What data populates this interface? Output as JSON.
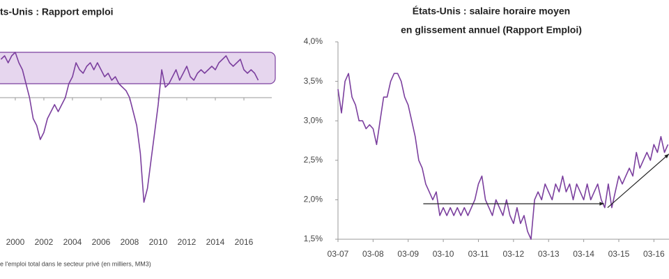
{
  "chart_data": [
    {
      "type": "line",
      "title": "ts-Unis : Rapport emploi",
      "note": "e l'emploi total dans le secteur privé (en milliers, MM3)",
      "color": "#7b3f9e",
      "band": [
        100,
        325
      ],
      "band_color": "#e6d6ee",
      "x": [
        1999,
        1999.25,
        1999.5,
        1999.75,
        2000,
        2000.25,
        2000.5,
        2000.75,
        2001,
        2001.25,
        2001.5,
        2001.75,
        2002,
        2002.25,
        2002.5,
        2002.75,
        2003,
        2003.25,
        2003.5,
        2003.75,
        2004,
        2004.25,
        2004.5,
        2004.75,
        2005,
        2005.25,
        2005.5,
        2005.75,
        2006,
        2006.25,
        2006.5,
        2006.75,
        2007,
        2007.25,
        2007.5,
        2007.75,
        2008,
        2008.25,
        2008.5,
        2008.75,
        2009,
        2009.25,
        2009.5,
        2009.75,
        2010,
        2010.25,
        2010.5,
        2010.75,
        2011,
        2011.25,
        2011.5,
        2011.75,
        2012,
        2012.25,
        2012.5,
        2012.75,
        2013,
        2013.25,
        2013.5,
        2013.75,
        2014,
        2014.25,
        2014.5,
        2014.75,
        2015,
        2015.25,
        2015.5,
        2015.75,
        2016,
        2016.25,
        2016.5,
        2016.75,
        2017
      ],
      "values": [
        275,
        300,
        250,
        300,
        325,
        250,
        200,
        100,
        0,
        -150,
        -200,
        -300,
        -250,
        -150,
        -100,
        -50,
        -100,
        -50,
        0,
        100,
        150,
        250,
        200,
        175,
        225,
        250,
        200,
        250,
        200,
        150,
        175,
        125,
        150,
        100,
        75,
        50,
        0,
        -100,
        -200,
        -400,
        -750,
        -650,
        -450,
        -250,
        -50,
        200,
        75,
        100,
        150,
        200,
        125,
        175,
        225,
        150,
        125,
        175,
        200,
        175,
        200,
        225,
        200,
        250,
        275,
        300,
        250,
        225,
        250,
        275,
        200,
        175,
        200,
        175,
        125
      ],
      "xlim": [
        1998.93,
        2017.95
      ],
      "ylim": [
        -800,
        400
      ],
      "xticks": [
        2000,
        2002,
        2004,
        2006,
        2008,
        2010,
        2012,
        2014,
        2016
      ]
    },
    {
      "type": "line",
      "title": [
        "États-Unis : salaire horaire moyen",
        "en glissement annuel (Rapport Emploi)"
      ],
      "color": "#7b3f9e",
      "x": [
        2007.17,
        2007.27,
        2007.37,
        2007.47,
        2007.57,
        2007.67,
        2007.77,
        2007.87,
        2007.97,
        2008.07,
        2008.17,
        2008.27,
        2008.37,
        2008.47,
        2008.57,
        2008.67,
        2008.77,
        2008.87,
        2008.97,
        2009.07,
        2009.17,
        2009.27,
        2009.37,
        2009.47,
        2009.57,
        2009.67,
        2009.77,
        2009.87,
        2009.97,
        2010.07,
        2010.17,
        2010.27,
        2010.37,
        2010.47,
        2010.57,
        2010.67,
        2010.77,
        2010.87,
        2010.97,
        2011.07,
        2011.17,
        2011.27,
        2011.37,
        2011.47,
        2011.57,
        2011.67,
        2011.77,
        2011.87,
        2011.97,
        2012.07,
        2012.17,
        2012.27,
        2012.37,
        2012.47,
        2012.57,
        2012.67,
        2012.77,
        2012.87,
        2012.97,
        2013.07,
        2013.17,
        2013.27,
        2013.37,
        2013.47,
        2013.57,
        2013.67,
        2013.77,
        2013.87,
        2013.97,
        2014.07,
        2014.17,
        2014.27,
        2014.37,
        2014.47,
        2014.57,
        2014.67,
        2014.77,
        2014.87,
        2014.97,
        2015.07,
        2015.17,
        2015.27,
        2015.37,
        2015.47,
        2015.57,
        2015.67,
        2015.77,
        2015.87,
        2015.97,
        2016.07,
        2016.17,
        2016.27,
        2016.37,
        2016.47,
        2016.57
      ],
      "values": [
        3.4,
        3.1,
        3.5,
        3.6,
        3.3,
        3.2,
        3.0,
        3.0,
        2.9,
        2.95,
        2.9,
        2.7,
        3.0,
        3.3,
        3.3,
        3.5,
        3.6,
        3.6,
        3.5,
        3.3,
        3.2,
        3.0,
        2.8,
        2.5,
        2.4,
        2.2,
        2.1,
        2.0,
        2.1,
        1.8,
        1.9,
        1.8,
        1.9,
        1.8,
        1.9,
        1.8,
        1.9,
        1.8,
        1.9,
        2.0,
        2.2,
        2.3,
        2.0,
        1.9,
        1.8,
        2.0,
        1.9,
        1.8,
        2.0,
        1.8,
        1.7,
        1.9,
        1.7,
        1.8,
        1.6,
        1.5,
        2.0,
        2.1,
        2.0,
        2.2,
        2.1,
        2.0,
        2.2,
        2.1,
        2.3,
        2.1,
        2.2,
        2.0,
        2.2,
        2.1,
        2.0,
        2.2,
        2.0,
        2.1,
        2.2,
        2.0,
        1.9,
        2.2,
        1.9,
        2.1,
        2.3,
        2.2,
        2.3,
        2.4,
        2.3,
        2.6,
        2.4,
        2.5,
        2.6,
        2.5,
        2.7,
        2.6,
        2.8,
        2.6,
        2.7
      ],
      "trend_lines": [
        {
          "x": [
            2009.6,
            2014.75
          ],
          "values": [
            1.95,
            1.95
          ]
        },
        {
          "x": [
            2014.85,
            2016.6
          ],
          "values": [
            1.9,
            2.58
          ]
        }
      ],
      "trend_color": "#222222",
      "xlim": [
        2007.17,
        2016.6
      ],
      "ylim": [
        1.5,
        4.0
      ],
      "xticks": [
        {
          "value": 2007.17,
          "label": "03-07"
        },
        {
          "value": 2008.17,
          "label": "03-08"
        },
        {
          "value": 2009.17,
          "label": "03-09"
        },
        {
          "value": 2010.17,
          "label": "03-10"
        },
        {
          "value": 2011.17,
          "label": "03-11"
        },
        {
          "value": 2012.17,
          "label": "03-12"
        },
        {
          "value": 2013.17,
          "label": "03-13"
        },
        {
          "value": 2014.17,
          "label": "03-14"
        },
        {
          "value": 2015.17,
          "label": "03-15"
        },
        {
          "value": 2016.17,
          "label": "03-16"
        }
      ],
      "yticks": [
        {
          "value": 1.5,
          "label": "1,5%"
        },
        {
          "value": 2.0,
          "label": "2,0%"
        },
        {
          "value": 2.5,
          "label": "2,5%"
        },
        {
          "value": 3.0,
          "label": "3,0%"
        },
        {
          "value": 3.5,
          "label": "3,5%"
        },
        {
          "value": 4.0,
          "label": "4,0%"
        }
      ]
    }
  ]
}
